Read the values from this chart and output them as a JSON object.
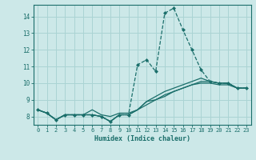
{
  "xlabel": "Humidex (Indice chaleur)",
  "ylabel": "",
  "bg_color": "#cce8e8",
  "grid_color": "#aad4d4",
  "line_color": "#1a6e6a",
  "xlim": [
    -0.5,
    23.5
  ],
  "ylim": [
    7.5,
    14.7
  ],
  "xticks": [
    0,
    1,
    2,
    3,
    4,
    5,
    6,
    7,
    8,
    9,
    10,
    11,
    12,
    13,
    14,
    15,
    16,
    17,
    18,
    19,
    20,
    21,
    22,
    23
  ],
  "yticks": [
    8,
    9,
    10,
    11,
    12,
    13,
    14
  ],
  "series": [
    {
      "y": [
        8.4,
        8.2,
        7.8,
        8.1,
        8.1,
        8.1,
        8.1,
        8.0,
        7.7,
        8.1,
        8.1,
        11.1,
        11.4,
        10.7,
        14.2,
        14.5,
        13.2,
        12.0,
        10.8,
        10.1,
        10.0,
        10.0,
        9.7,
        9.7
      ],
      "linestyle": "--",
      "marker": "D",
      "markersize": 2.0,
      "linewidth": 0.9
    },
    {
      "y": [
        8.4,
        8.2,
        7.8,
        8.1,
        8.1,
        8.1,
        8.4,
        8.1,
        8.0,
        8.2,
        8.2,
        8.4,
        8.9,
        9.2,
        9.5,
        9.7,
        9.9,
        10.1,
        10.3,
        10.1,
        10.0,
        10.0,
        9.7,
        9.7
      ],
      "linestyle": "-",
      "marker": null,
      "markersize": 0,
      "linewidth": 0.9
    },
    {
      "y": [
        8.4,
        8.2,
        7.8,
        8.1,
        8.1,
        8.1,
        8.1,
        8.0,
        7.7,
        8.1,
        8.1,
        8.4,
        8.9,
        9.0,
        9.2,
        9.5,
        9.7,
        9.9,
        10.1,
        10.1,
        10.0,
        10.0,
        9.7,
        9.7
      ],
      "linestyle": "-",
      "marker": null,
      "markersize": 0,
      "linewidth": 0.9
    },
    {
      "y": [
        8.4,
        8.2,
        7.8,
        8.1,
        8.1,
        8.1,
        8.1,
        8.0,
        7.7,
        8.1,
        8.1,
        8.4,
        8.7,
        9.0,
        9.3,
        9.5,
        9.7,
        9.9,
        10.0,
        10.0,
        9.9,
        9.9,
        9.7,
        9.7
      ],
      "linestyle": "-",
      "marker": null,
      "markersize": 0,
      "linewidth": 0.9
    }
  ]
}
